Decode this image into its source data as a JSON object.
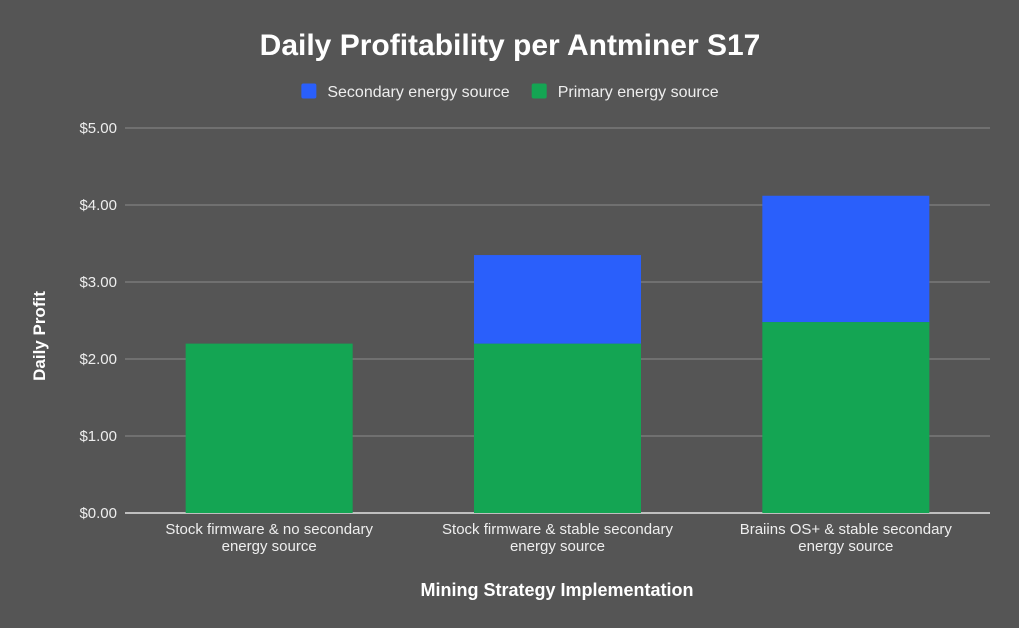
{
  "chart_data": {
    "type": "bar",
    "stacked": true,
    "title": "Daily Profitability per Antminer S17",
    "xlabel": "Mining Strategy Implementation",
    "ylabel": "Daily Profit",
    "ylim": [
      0,
      5
    ],
    "yticks": [
      0,
      1,
      2,
      3,
      4,
      5
    ],
    "ytick_labels": [
      "$0.00",
      "$1.00",
      "$2.00",
      "$3.00",
      "$4.00",
      "$5.00"
    ],
    "grid": true,
    "legend_position": "top",
    "categories": [
      [
        "Stock firmware & no secondary",
        "energy source"
      ],
      [
        "Stock firmware & stable secondary",
        "energy source"
      ],
      [
        "Braiins OS+ & stable secondary",
        "energy source"
      ]
    ],
    "series": [
      {
        "name": "Primary energy source",
        "color": "#14a553",
        "values": [
          2.2,
          2.2,
          2.48
        ]
      },
      {
        "name": "Secondary energy source",
        "color": "#2a5ffb",
        "values": [
          0,
          1.15,
          1.64
        ]
      }
    ],
    "legend_order": [
      1,
      0
    ]
  },
  "colors": {
    "background": "#555555",
    "gridline": "#8a8a8a",
    "baseline": "#ffffff"
  }
}
